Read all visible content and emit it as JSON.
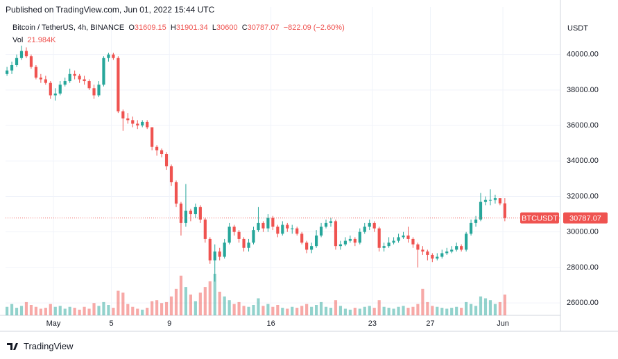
{
  "published": "Published on TradingView.com, Jun 01, 2022 15:44 UTC",
  "footer": "TradingView",
  "chart_data": {
    "type": "candlestick",
    "symbol": "Bitcoin / TetherUS, 4h, BINANCE",
    "ohlc_labels": [
      "O",
      "H",
      "L",
      "C"
    ],
    "change": "−822.09 (−2.60%)",
    "volume_label": "Vol",
    "axis_unit": "USDT",
    "ticker": "BTCUSDT",
    "up_color": "#26a69a",
    "down_color": "#ef5350",
    "open": [
      38900,
      39100,
      39400,
      39800,
      40200,
      39900,
      39300,
      38700,
      38600,
      38400,
      37700,
      37800,
      38300,
      38500,
      38900,
      38800,
      38600,
      38500,
      38100,
      37700,
      38300,
      39800,
      40000,
      39800,
      36800,
      36400,
      36300,
      36100,
      36000,
      36200,
      35900,
      34800,
      34600,
      34400,
      33700,
      32800,
      31600,
      30500,
      31200,
      31000,
      31400,
      30700,
      29600,
      28400,
      28900,
      28600,
      29400,
      30300,
      30000,
      29600,
      29100,
      29400,
      30100,
      30500,
      30200,
      30800,
      30300,
      29900,
      30400,
      30200,
      30200,
      29900,
      29400,
      29000,
      29200,
      29800,
      30300,
      30500,
      30600,
      29200,
      29300,
      29500,
      29600,
      29400,
      30000,
      30300,
      30500,
      30200,
      29100,
      29200,
      29400,
      29500,
      29700,
      29800,
      29600,
      29300,
      29000,
      28900,
      28700,
      28500,
      28600,
      28800,
      28900,
      29000,
      29200,
      29000,
      29900,
      30500,
      30700,
      31700,
      31800,
      31800,
      31900,
      31609.15
    ],
    "high": [
      39300,
      39600,
      40000,
      40500,
      40400,
      40000,
      39400,
      38900,
      38800,
      38500,
      38100,
      38500,
      38700,
      39200,
      39100,
      38900,
      38800,
      38600,
      38300,
      38500,
      39900,
      40100,
      40100,
      39900,
      36900,
      36700,
      36500,
      36300,
      36300,
      36300,
      35900,
      34900,
      34700,
      34500,
      33800,
      32900,
      31700,
      32700,
      31300,
      31600,
      31500,
      30800,
      29700,
      29300,
      29100,
      29600,
      30500,
      30400,
      30100,
      29700,
      29600,
      30300,
      31400,
      30600,
      31000,
      30900,
      30400,
      30600,
      30500,
      30400,
      30300,
      30000,
      29500,
      29400,
      30100,
      30500,
      30700,
      30800,
      30700,
      29500,
      29700,
      29800,
      29700,
      30200,
      30500,
      30700,
      30600,
      30300,
      29400,
      29700,
      29700,
      29900,
      30000,
      30300,
      29700,
      29400,
      29200,
      29000,
      28800,
      28800,
      29000,
      29100,
      29200,
      29400,
      29300,
      30000,
      30700,
      30900,
      32200,
      32000,
      32400,
      32100,
      31900,
      31901.34
    ],
    "low": [
      38800,
      38900,
      39300,
      39700,
      39800,
      39200,
      38600,
      38400,
      38300,
      37500,
      37400,
      37700,
      38200,
      38400,
      38600,
      38400,
      38300,
      38000,
      37500,
      37600,
      38200,
      39600,
      39700,
      36700,
      35700,
      36100,
      35900,
      35800,
      35900,
      35800,
      34600,
      34300,
      34200,
      33500,
      32600,
      31400,
      29800,
      30300,
      30600,
      30800,
      30500,
      29400,
      28200,
      27200,
      28400,
      28500,
      29300,
      29800,
      29400,
      28900,
      28900,
      29300,
      30000,
      30000,
      30000,
      30100,
      29700,
      29800,
      30000,
      29900,
      29800,
      29300,
      28800,
      28800,
      29100,
      29700,
      30200,
      30300,
      29000,
      29000,
      29200,
      29400,
      29200,
      29300,
      29900,
      30100,
      30000,
      28900,
      28900,
      29100,
      29300,
      29400,
      29600,
      29400,
      29100,
      28000,
      28700,
      28400,
      28300,
      28400,
      28500,
      28700,
      28800,
      28900,
      28900,
      28900,
      29800,
      30300,
      30600,
      31500,
      31500,
      31600,
      31500,
      30600
    ],
    "close": [
      39100,
      39400,
      39800,
      40200,
      39900,
      39300,
      38700,
      38600,
      38400,
      37700,
      37800,
      38300,
      38500,
      38900,
      38800,
      38600,
      38500,
      38100,
      37700,
      38300,
      39800,
      40000,
      39800,
      36800,
      36400,
      36300,
      36100,
      36000,
      36200,
      35900,
      34800,
      34600,
      34400,
      33700,
      32800,
      31600,
      30500,
      31200,
      31000,
      31400,
      30700,
      29600,
      28400,
      28900,
      28600,
      29400,
      30300,
      30000,
      29600,
      29100,
      29400,
      30100,
      30500,
      30200,
      30800,
      30300,
      29900,
      30400,
      30200,
      30200,
      29900,
      29400,
      29000,
      29200,
      29800,
      30300,
      30500,
      30600,
      29200,
      29300,
      29500,
      29600,
      29400,
      30000,
      30300,
      30500,
      30200,
      29100,
      29200,
      29400,
      29500,
      29700,
      29800,
      29600,
      29300,
      29000,
      28900,
      28700,
      28500,
      28600,
      28800,
      28900,
      29000,
      29200,
      29000,
      29900,
      30500,
      30700,
      31700,
      31800,
      31800,
      31900,
      31609.15,
      30787.07
    ],
    "volume": [
      9000,
      12000,
      8000,
      10000,
      14000,
      11000,
      9000,
      7000,
      8000,
      12000,
      9000,
      10000,
      7000,
      9000,
      8000,
      6000,
      9000,
      7000,
      13000,
      10000,
      14000,
      11000,
      8000,
      26000,
      24000,
      12000,
      9000,
      7000,
      6000,
      8000,
      15000,
      16000,
      13000,
      14000,
      20000,
      28000,
      42000,
      30000,
      22000,
      15000,
      24000,
      30000,
      36000,
      44000,
      25000,
      20000,
      16000,
      12000,
      14000,
      10000,
      9000,
      11000,
      18000,
      10000,
      12000,
      9000,
      11000,
      8000,
      7000,
      9000,
      8000,
      10000,
      12000,
      9000,
      11000,
      14000,
      9000,
      8000,
      16000,
      10000,
      7000,
      6000,
      8000,
      7000,
      9000,
      10000,
      8000,
      16000,
      9000,
      8000,
      7000,
      9000,
      10000,
      8000,
      9000,
      12000,
      28000,
      14000,
      10000,
      9000,
      8000,
      7000,
      8000,
      9000,
      8000,
      14000,
      12000,
      10000,
      20000,
      18000,
      16000,
      12000,
      14000,
      21984
    ],
    "volume_value_label": "21.984K",
    "xlim": [
      -0.3,
      114.5
    ],
    "xticks": [
      {
        "value": 9.6,
        "label": "May"
      },
      {
        "value": 21.6,
        "label": "5"
      },
      {
        "value": 33.6,
        "label": "9"
      },
      {
        "value": 54.6,
        "label": "16"
      },
      {
        "value": 75.6,
        "label": "23"
      },
      {
        "value": 87.6,
        "label": "27"
      },
      {
        "value": 102.6,
        "label": "Jun"
      }
    ],
    "ylim": [
      25300,
      41900
    ],
    "yticks": [
      {
        "value": 26000,
        "label": "26000.00"
      },
      {
        "value": 28000,
        "label": "28000.00"
      },
      {
        "value": 30000,
        "label": "30000.00"
      },
      {
        "value": 32000,
        "label": "32000.00"
      },
      {
        "value": 34000,
        "label": "34000.00"
      },
      {
        "value": 36000,
        "label": "36000.00"
      },
      {
        "value": 38000,
        "label": "38000.00"
      },
      {
        "value": 40000,
        "label": "40000.00"
      }
    ],
    "grid": true
  }
}
